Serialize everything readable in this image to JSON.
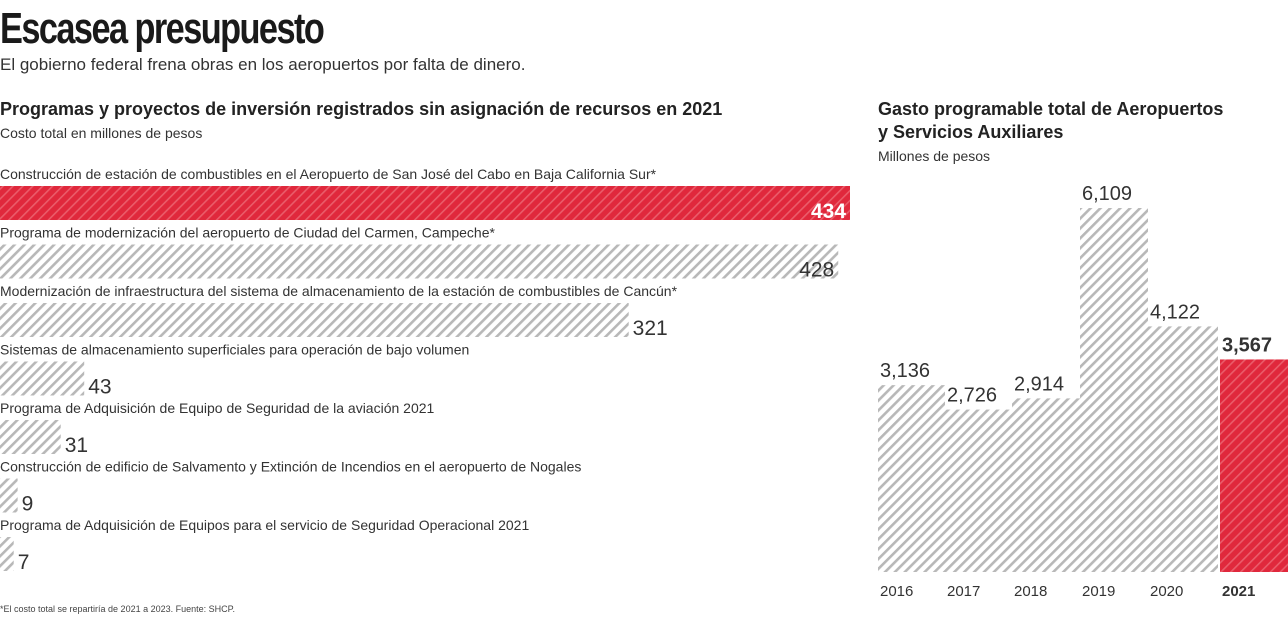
{
  "header": {
    "title": "Escasea presupuesto",
    "subtitle": "El gobierno federal frena obras en los aeropuertos por falta de dinero."
  },
  "footnote": "*El costo total se repartiría de 2021 a 2023. Fuente: SHCP.",
  "colors": {
    "highlight": "#e0283c",
    "hatch": "#b8b8b8"
  },
  "chart_data": [
    {
      "type": "bar",
      "orientation": "horizontal",
      "title": "Programas y proyectos de inversión registrados sin asignación de recursos en 2021",
      "subtitle": "Costo total en millones de pesos",
      "categories": [
        "Construcción de estación de combustibles en el Aeropuerto de San José del Cabo en Baja California Sur*",
        "Programa de modernización del aeropuerto de Ciudad del Carmen, Campeche*",
        "Modernización de infraestructura del sistema de almacenamiento de la estación de combustibles de Cancún*",
        "Sistemas de almacenamiento superficiales para operación de bajo volumen",
        "Programa de Adquisición de Equipo de Seguridad de la aviación 2021",
        "Construcción de edificio de Salvamento y Extinción de Incendios en el aeropuerto de Nogales",
        "Programa de Adquisición de Equipos para el servicio de Seguridad Operacional 2021"
      ],
      "values": [
        434,
        428,
        321,
        43,
        31,
        9,
        7
      ],
      "value_labels": [
        "434",
        "428",
        "321",
        "43",
        "31",
        "9",
        "7"
      ],
      "highlight_index": 0
    },
    {
      "type": "bar",
      "orientation": "vertical",
      "title": "Gasto programable total  de Aeropuertos y Servicios Auxiliares",
      "title_lines": [
        "Gasto programable total  de Aeropuertos",
        "y Servicios Auxiliares"
      ],
      "subtitle": "Millones de pesos",
      "categories": [
        "2016",
        "2017",
        "2018",
        "2019",
        "2020",
        "2021"
      ],
      "values": [
        3136,
        2726,
        2914,
        6109,
        4122,
        3567
      ],
      "value_labels": [
        "3,136",
        "2,726",
        "2,914",
        "6,109",
        "4,122",
        "3,567"
      ],
      "highlight_index": 5
    }
  ]
}
